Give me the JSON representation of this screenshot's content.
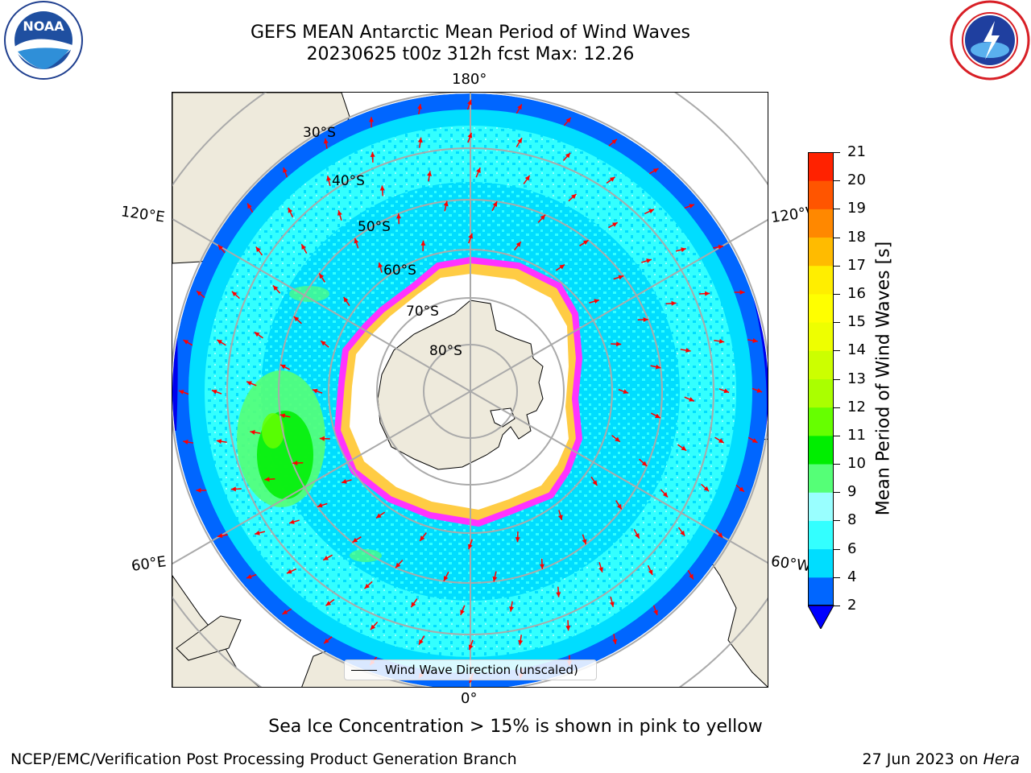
{
  "title": {
    "line1": "GEFS MEAN Antarctic Mean Period of Wind Waves",
    "line2": "20230625 t00z 312h fcst   Max: 12.26"
  },
  "map": {
    "projection": "south-polar-stereographic",
    "lon_labels": {
      "top": "180°",
      "bottom": "0°",
      "left_upper": "120°E",
      "left_lower": "60°E",
      "right_upper": "120°W",
      "right_lower": "60°W"
    },
    "lat_labels": [
      "30°S",
      "40°S",
      "50°S",
      "60°S",
      "70°S",
      "80°S"
    ],
    "legend": "Wind Wave Direction (unscaled)",
    "arrow_color": "#ff0000",
    "land_color": "#eeeadc",
    "ice_colors": [
      "#ff33ff",
      "#ffcc44"
    ]
  },
  "colorbar": {
    "label": "Mean Period of Wind Waves [s]",
    "ticks": [
      "2",
      "4",
      "6",
      "8",
      "9",
      "10",
      "11",
      "12",
      "13",
      "14",
      "15",
      "16",
      "17",
      "18",
      "19",
      "20",
      "21"
    ],
    "colors": [
      "#0066ff",
      "#00ddff",
      "#33ffff",
      "#99ffff",
      "#55ff77",
      "#00ee00",
      "#66ff00",
      "#aaff00",
      "#ccff00",
      "#eeff00",
      "#ffff00",
      "#ffee00",
      "#ffbb00",
      "#ff8800",
      "#ff5500",
      "#ff2200",
      "#ff0000"
    ],
    "extend_color": "#0000ff"
  },
  "notes": {
    "sea_ice": "Sea Ice Concentration > 15% is shown in pink to yellow"
  },
  "footer": {
    "left": "NCEP/EMC/Verification Post Processing Product Generation Branch",
    "right_date": "27 Jun 2023 on ",
    "right_machine": "Hera"
  },
  "logos": {
    "noaa_text": "NOAA",
    "noaa_ring": "NATIONAL OCEANIC AND ATMOSPHERIC ADMINISTRATION · U.S. DEPARTMENT OF COMMERCE",
    "nws_ring": "NATIONAL WEATHER SERVICE"
  }
}
